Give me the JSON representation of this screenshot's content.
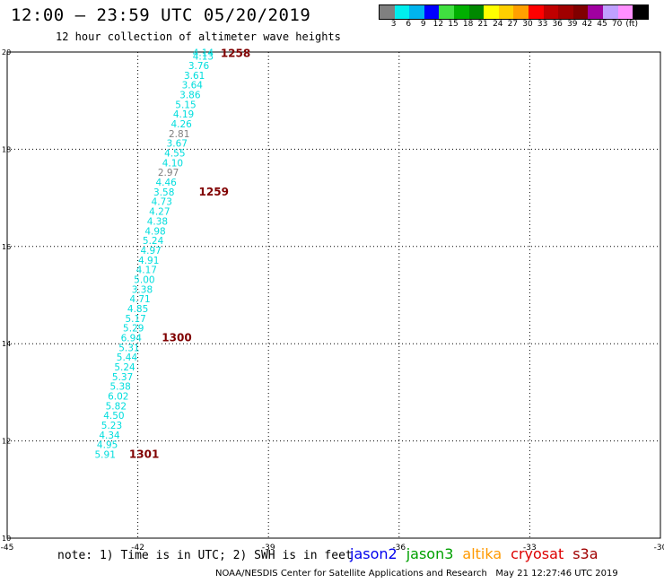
{
  "header": {
    "title": "12:00 – 23:59 UTC 05/20/2019",
    "subtitle": "12 hour collection of altimeter wave heights"
  },
  "legend": {
    "colors": [
      "#808080",
      "#00eeee",
      "#00b4ee",
      "#0000ff",
      "#00b0ee",
      "#00ee00",
      "#00b000",
      "#009000",
      "#ffff00",
      "#ffd000",
      "#ffb000",
      "#ff9000",
      "#ff0000",
      "#d00000",
      "#a00000",
      "#800000",
      "#a000a0",
      "#c0a0ff",
      "#ff80ff",
      "#000000"
    ],
    "swatch_colors": [
      "#808080",
      "#00eeee",
      "#00b4ee",
      "#0000ff",
      "#40e040",
      "#00b000",
      "#008800",
      "#ffff00",
      "#ffd000",
      "#ffa000",
      "#ff0000",
      "#c00000",
      "#a00000",
      "#800000",
      "#a000a0",
      "#c0a0ff",
      "#ff90ff",
      "#000000"
    ],
    "labels": [
      "3",
      "6",
      "9",
      "12",
      "15",
      "18",
      "21",
      "24",
      "27",
      "30",
      "33",
      "36",
      "39",
      "42",
      "45",
      "70",
      "(ft)"
    ]
  },
  "axes": {
    "x_ticks": [
      "-45",
      "-42",
      "-39",
      "-36",
      "-33",
      "-30"
    ],
    "y_ticks": [
      "20",
      "18",
      "16",
      "14",
      "12",
      "10"
    ],
    "x_range": [
      -45,
      -30
    ],
    "y_range": [
      10,
      20
    ]
  },
  "track": {
    "color": "#00dddd",
    "gray_color": "#808080",
    "points": [
      {
        "lon": -40.5,
        "lat": 19.92,
        "swh": "4.14"
      },
      {
        "lon": -40.5,
        "lat": 19.84,
        "swh": "4.13"
      },
      {
        "lon": -40.6,
        "lat": 19.65,
        "swh": "3.76"
      },
      {
        "lon": -40.7,
        "lat": 19.45,
        "swh": "3.61"
      },
      {
        "lon": -40.75,
        "lat": 19.25,
        "swh": "3.64"
      },
      {
        "lon": -40.8,
        "lat": 19.05,
        "swh": "3.86"
      },
      {
        "lon": -40.9,
        "lat": 18.85,
        "swh": "5.15"
      },
      {
        "lon": -40.95,
        "lat": 18.65,
        "swh": "4.19"
      },
      {
        "lon": -41.0,
        "lat": 18.45,
        "swh": "4.26"
      },
      {
        "lon": -41.05,
        "lat": 18.25,
        "swh": "2.81",
        "gray": true
      },
      {
        "lon": -41.1,
        "lat": 18.05,
        "swh": "3.67"
      },
      {
        "lon": -41.15,
        "lat": 17.85,
        "swh": "4.55"
      },
      {
        "lon": -41.2,
        "lat": 17.65,
        "swh": "4.10"
      },
      {
        "lon": -41.3,
        "lat": 17.45,
        "swh": "2.97",
        "gray": true
      },
      {
        "lon": -41.35,
        "lat": 17.25,
        "swh": "4.46"
      },
      {
        "lon": -41.4,
        "lat": 17.05,
        "swh": "3.58"
      },
      {
        "lon": -41.45,
        "lat": 16.85,
        "swh": "4.73"
      },
      {
        "lon": -41.5,
        "lat": 16.65,
        "swh": "4.27"
      },
      {
        "lon": -41.55,
        "lat": 16.45,
        "swh": "4.38"
      },
      {
        "lon": -41.6,
        "lat": 16.25,
        "swh": "4.98"
      },
      {
        "lon": -41.65,
        "lat": 16.05,
        "swh": "5.24"
      },
      {
        "lon": -41.7,
        "lat": 15.85,
        "swh": "4.97"
      },
      {
        "lon": -41.75,
        "lat": 15.65,
        "swh": "4.91"
      },
      {
        "lon": -41.8,
        "lat": 15.45,
        "swh": "4.17"
      },
      {
        "lon": -41.85,
        "lat": 15.25,
        "swh": "5.00"
      },
      {
        "lon": -41.9,
        "lat": 15.05,
        "swh": "3.38"
      },
      {
        "lon": -41.95,
        "lat": 14.85,
        "swh": "4.71"
      },
      {
        "lon": -42.0,
        "lat": 14.65,
        "swh": "4.85"
      },
      {
        "lon": -42.05,
        "lat": 14.45,
        "swh": "5.17"
      },
      {
        "lon": -42.1,
        "lat": 14.25,
        "swh": "5.29"
      },
      {
        "lon": -42.15,
        "lat": 14.05,
        "swh": "6.94"
      },
      {
        "lon": -42.2,
        "lat": 13.85,
        "swh": "5.31"
      },
      {
        "lon": -42.25,
        "lat": 13.65,
        "swh": "5.44"
      },
      {
        "lon": -42.3,
        "lat": 13.45,
        "swh": "5.24"
      },
      {
        "lon": -42.35,
        "lat": 13.25,
        "swh": "5.37"
      },
      {
        "lon": -42.4,
        "lat": 13.05,
        "swh": "5.38"
      },
      {
        "lon": -42.45,
        "lat": 12.85,
        "swh": "6.02"
      },
      {
        "lon": -42.5,
        "lat": 12.65,
        "swh": "5.82"
      },
      {
        "lon": -42.55,
        "lat": 12.45,
        "swh": "4.50"
      },
      {
        "lon": -42.6,
        "lat": 12.25,
        "swh": "5.23"
      },
      {
        "lon": -42.65,
        "lat": 12.05,
        "swh": "4.34"
      },
      {
        "lon": -42.7,
        "lat": 11.85,
        "swh": "4.95"
      },
      {
        "lon": -42.75,
        "lat": 11.65,
        "swh": "5.91"
      }
    ],
    "time_labels": [
      {
        "lon": -40.1,
        "lat": 19.9,
        "label": "1258"
      },
      {
        "lon": -40.6,
        "lat": 17.05,
        "label": "1259"
      },
      {
        "lon": -41.45,
        "lat": 14.05,
        "label": "1300"
      },
      {
        "lon": -42.2,
        "lat": 11.65,
        "label": "1301"
      }
    ]
  },
  "note": "note: 1) Time is in UTC; 2) SWH is in feet",
  "satellites": [
    {
      "name": "jason2",
      "color": "#0000ee"
    },
    {
      "name": "jason3",
      "color": "#00a000"
    },
    {
      "name": "altika",
      "color": "#ff9900"
    },
    {
      "name": "cryosat",
      "color": "#dd0000"
    },
    {
      "name": "s3a",
      "color": "#a00000"
    }
  ],
  "footer": "NOAA/NESDIS Center for Satellite Applications and Research   May 21 12:27:46 UTC 2019"
}
